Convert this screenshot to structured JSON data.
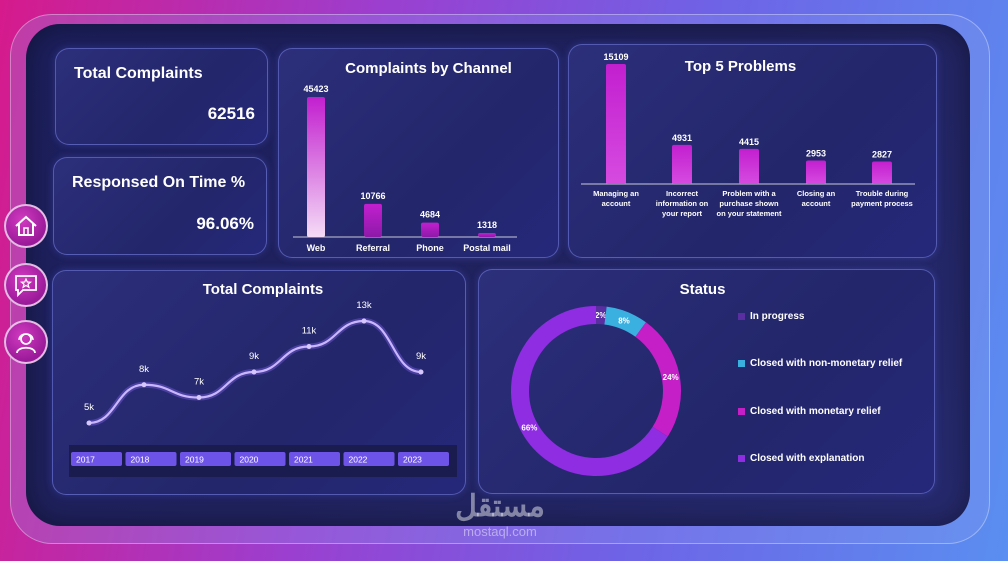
{
  "kpi": {
    "total_complaints_label": "Total Complaints",
    "total_complaints_value": "62516",
    "responded_label": "Responsed On Time  %",
    "responded_value": "96.06%"
  },
  "sidebar": {
    "items": [
      {
        "icon": "home-icon"
      },
      {
        "icon": "chat-star-icon"
      },
      {
        "icon": "user-headset-icon"
      }
    ]
  },
  "colors": {
    "accent": "#c21fcf",
    "bar_light": "#f2d6f4",
    "line": "#b99cff",
    "status": [
      "#5a2ea0",
      "#3ab0e0",
      "#c51fc8",
      "#8e2de2"
    ]
  },
  "watermark": {
    "logo": "مستقل",
    "url": "mostaql.com"
  },
  "chart_data": [
    {
      "type": "bar",
      "title": "Complaints by Channel",
      "categories": [
        "Web",
        "Referral",
        "Phone",
        "Postal mail"
      ],
      "values": [
        45423,
        10766,
        4684,
        1318
      ],
      "value_labels": [
        "45423",
        "10766",
        "4684",
        "1318"
      ]
    },
    {
      "type": "bar",
      "title": "Top 5 Problems",
      "categories": [
        [
          "Managing an",
          "account"
        ],
        [
          "Incorrect",
          "information on",
          "your report"
        ],
        [
          "Problem with a",
          "purchase shown",
          "on your statement"
        ],
        [
          "Closing an",
          "account"
        ],
        [
          "Trouble during",
          "payment process"
        ]
      ],
      "values": [
        15109,
        4931,
        4415,
        2953,
        2827
      ],
      "value_labels": [
        "15109",
        "4931",
        "4415",
        "2953",
        "2827"
      ]
    },
    {
      "type": "line",
      "title": "Total Complaints",
      "x": [
        "2017",
        "2018",
        "2019",
        "2020",
        "2021",
        "2022",
        "2023"
      ],
      "values": [
        5000,
        8000,
        7000,
        9000,
        11000,
        13000,
        9000
      ],
      "value_labels": [
        "5k",
        "8k",
        "7k",
        "9k",
        "11k",
        "13k",
        "9k"
      ]
    },
    {
      "type": "pie",
      "title": "Status",
      "categories": [
        "In progress",
        "Closed with non-monetary relief",
        "Closed with monetary relief",
        "Closed with explanation"
      ],
      "values": [
        2,
        8,
        24,
        66
      ],
      "value_labels": [
        "2%",
        "8%",
        "24%",
        "66%"
      ],
      "legend": "right"
    }
  ]
}
